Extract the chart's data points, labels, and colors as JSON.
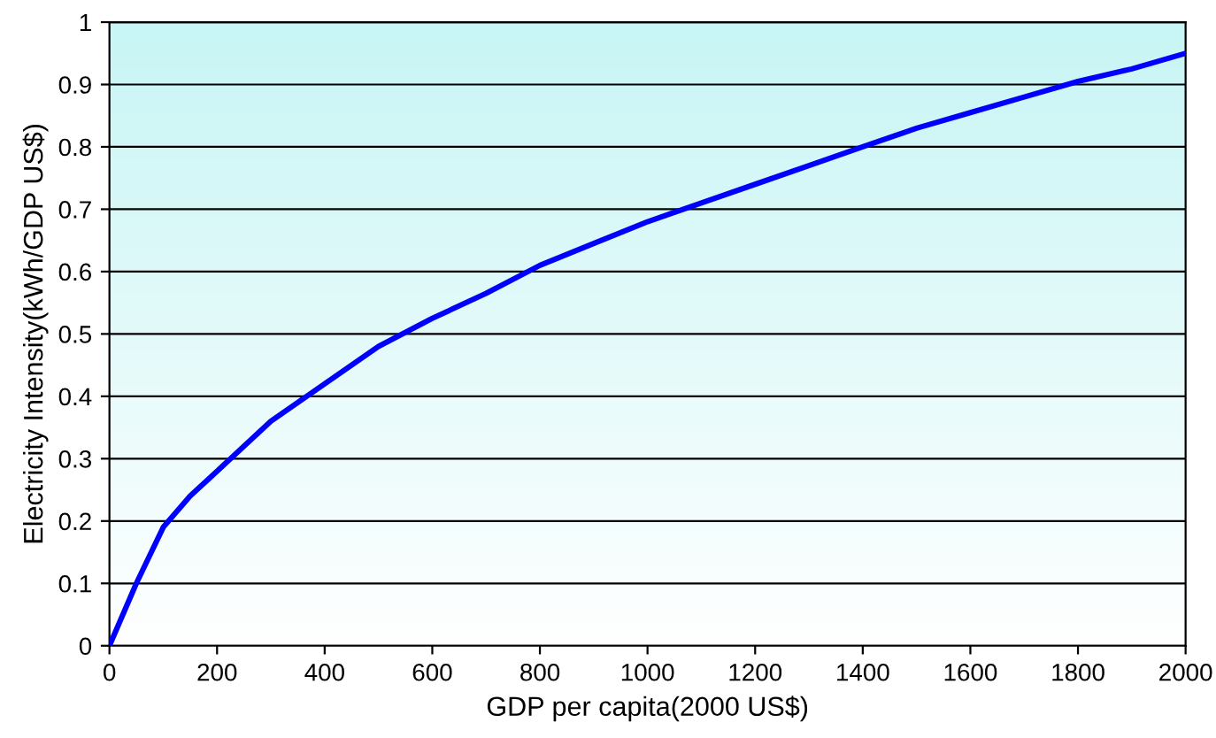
{
  "chart_data": {
    "type": "line",
    "xlabel": "GDP per capita(2000 US$)",
    "ylabel": "Electricity Intensity(kWh/GDP US$)",
    "x": [
      0,
      50,
      100,
      150,
      200,
      300,
      400,
      500,
      600,
      700,
      800,
      900,
      1000,
      1100,
      1200,
      1300,
      1400,
      1500,
      1600,
      1700,
      1800,
      1900,
      2000
    ],
    "series": [
      {
        "color": "#0000ff",
        "values": [
          0,
          0.1,
          0.19,
          0.24,
          0.28,
          0.36,
          0.42,
          0.48,
          0.525,
          0.565,
          0.61,
          0.645,
          0.68,
          0.71,
          0.74,
          0.77,
          0.8,
          0.83,
          0.855,
          0.88,
          0.905,
          0.925,
          0.95
        ]
      }
    ],
    "xlim": [
      0,
      2000
    ],
    "ylim": [
      0,
      1
    ],
    "xticks": [
      0,
      200,
      400,
      600,
      800,
      1000,
      1200,
      1400,
      1600,
      1800,
      2000
    ],
    "yticks": [
      0,
      0.1,
      0.2,
      0.3,
      0.4,
      0.5,
      0.6,
      0.7,
      0.8,
      0.9,
      1
    ],
    "grid": "y",
    "marker": "none",
    "line_style": "solid"
  }
}
